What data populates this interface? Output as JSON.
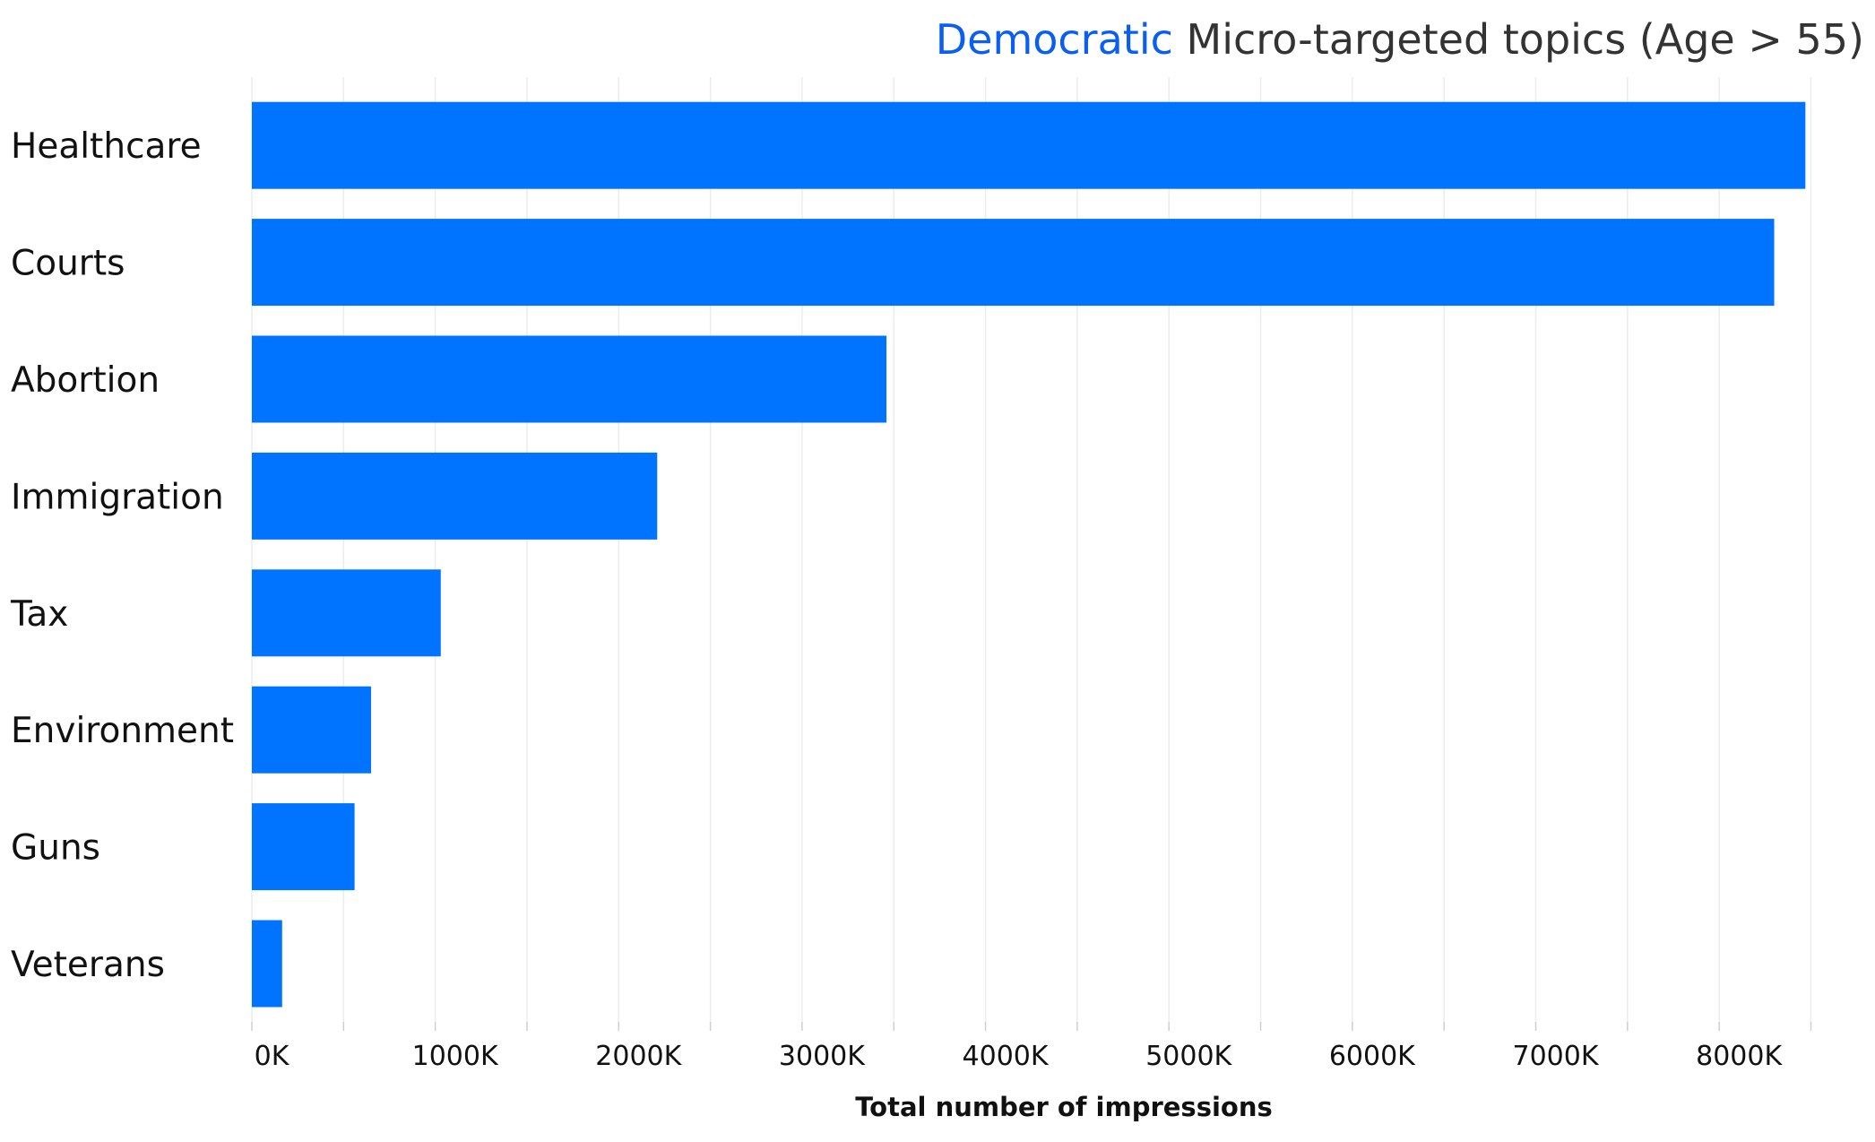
{
  "chart_data": {
    "type": "bar",
    "orientation": "horizontal",
    "title_parts": [
      {
        "text": "Democratic",
        "color": "#0a5ff0"
      },
      {
        "text": " Micro-targeted topics (Age > 55)",
        "color": "#333333"
      }
    ],
    "categories": [
      "Healthcare",
      "Courts",
      "Abortion",
      "Immigration",
      "Tax",
      "Environment",
      "Guns",
      "Veterans"
    ],
    "values": [
      8470,
      8300,
      3460,
      2210,
      1030,
      650,
      560,
      165
    ],
    "value_unit": "K",
    "xlabel": "Total number of impressions",
    "ylabel": "",
    "xlim": [
      0,
      8500
    ],
    "xticks": [
      {
        "value": 0,
        "label": "0K"
      },
      {
        "value": 1000,
        "label": "1000K"
      },
      {
        "value": 2000,
        "label": "2000K"
      },
      {
        "value": 3000,
        "label": "3000K"
      },
      {
        "value": 4000,
        "label": "4000K"
      },
      {
        "value": 5000,
        "label": "5000K"
      },
      {
        "value": 6000,
        "label": "6000K"
      },
      {
        "value": 7000,
        "label": "7000K"
      },
      {
        "value": 8000,
        "label": "8000K"
      }
    ],
    "bar_color": "#0073ff",
    "grid": true,
    "legend": "none"
  }
}
